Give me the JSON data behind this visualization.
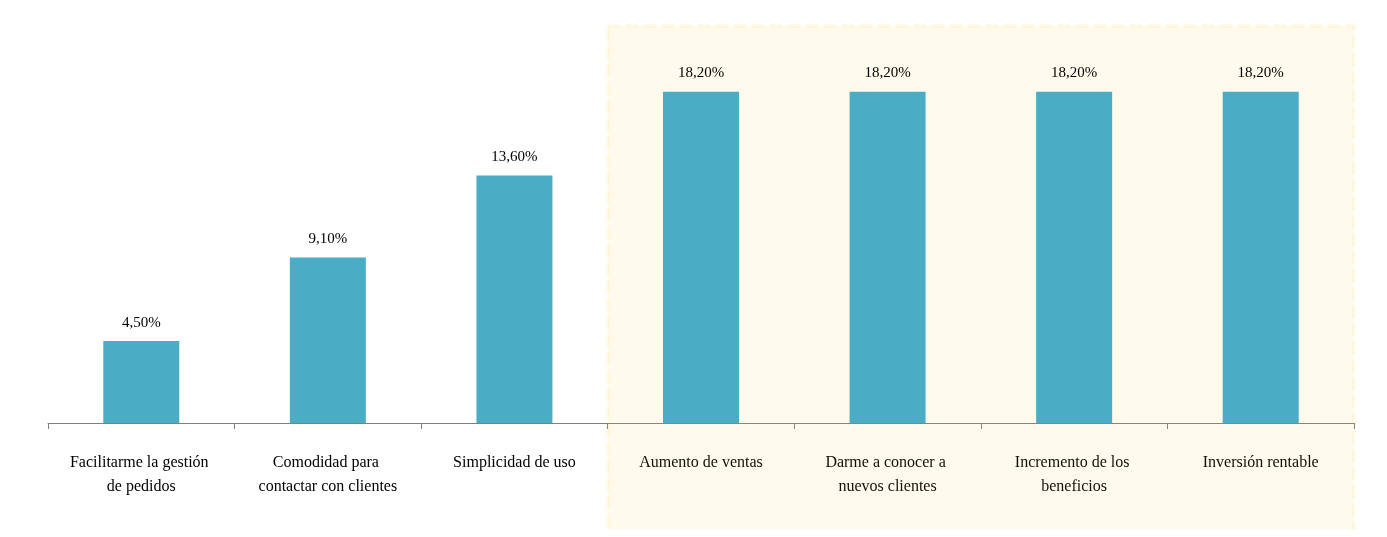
{
  "chart_data": {
    "type": "bar",
    "categories": [
      "Facilitarme la gestión de pedidos",
      "Comodidad para contactar con clientes",
      "Simplicidad de uso",
      "Aumento de ventas",
      "Darme a conocer a nuevos clientes",
      "Incremento de los beneficios",
      "Inversión rentable"
    ],
    "values": [
      4.5,
      9.1,
      13.6,
      18.2,
      18.2,
      18.2,
      18.2
    ],
    "value_labels": [
      "4,50%",
      "9,10%",
      "13,60%",
      "18,20%",
      "18,20%",
      "18,20%",
      "18,20%"
    ],
    "color": "#4bacc6",
    "bands": [
      {
        "axis": "x",
        "from": "Aumento de ventas",
        "to": "Inversión rentable",
        "color": "#ffc000"
      }
    ]
  }
}
